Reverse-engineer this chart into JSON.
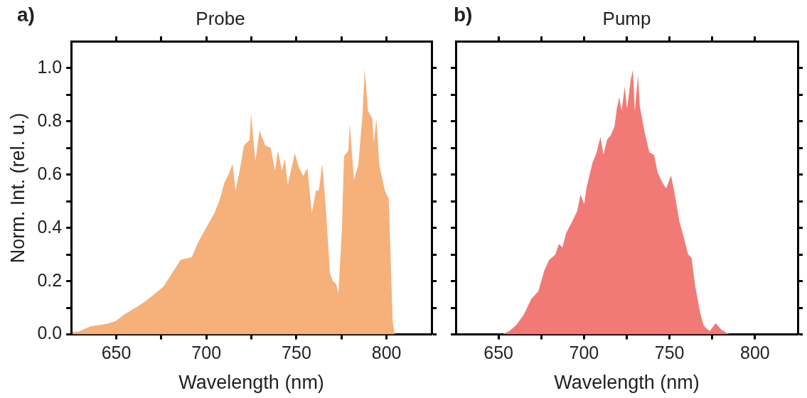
{
  "chart_data": [
    {
      "type": "area",
      "title": "Probe",
      "xlabel": "Wavelength (nm)",
      "ylabel": "Norm. Int. (rel. u.)",
      "annotations": [
        "a)"
      ],
      "color": "#f6b07a",
      "x": [
        625.8,
        628.9,
        635.6,
        645,
        649.7,
        654.4,
        660.6,
        665.3,
        670,
        676.3,
        681,
        685.7,
        691.9,
        695,
        699.8,
        704.5,
        707.6,
        710,
        712.3,
        714.6,
        716.2,
        718.5,
        720.9,
        724,
        724.8,
        727.2,
        729.5,
        732.7,
        735.8,
        738.1,
        739.7,
        742,
        743.6,
        745.1,
        749.1,
        751.4,
        753.8,
        756.1,
        758.5,
        760.8,
        762.4,
        764.4,
        766.3,
        768.6,
        770.2,
        772,
        773.3,
        775.2,
        776.4,
        778.8,
        779.6,
        781.9,
        784.3,
        786.6,
        787.9,
        789.7,
        792.1,
        792.9,
        794.4,
        796,
        799.1,
        801.2,
        802.3,
        803.4,
        804.6
      ],
      "values": [
        0.01,
        0.01,
        0.03,
        0.04,
        0.05,
        0.075,
        0.1,
        0.12,
        0.145,
        0.18,
        0.23,
        0.28,
        0.29,
        0.34,
        0.4,
        0.455,
        0.51,
        0.57,
        0.6,
        0.64,
        0.54,
        0.615,
        0.71,
        0.73,
        0.83,
        0.65,
        0.765,
        0.71,
        0.7,
        0.615,
        0.69,
        0.615,
        0.66,
        0.56,
        0.68,
        0.625,
        0.595,
        0.625,
        0.455,
        0.54,
        0.54,
        0.64,
        0.475,
        0.23,
        0.2,
        0.19,
        0.155,
        0.39,
        0.67,
        0.69,
        0.79,
        0.58,
        0.635,
        0.82,
        0.995,
        0.84,
        0.81,
        0.72,
        0.81,
        0.635,
        0.54,
        0.51,
        0.28,
        0.05,
        0
      ],
      "xlim": [
        625,
        825
      ],
      "xticks": [
        650,
        {
          "value": 675,
          "label": null
        },
        700,
        {
          "value": 725,
          "label": null
        },
        750,
        {
          "value": 775,
          "label": null
        },
        800
      ],
      "ylim": [
        0,
        1.1
      ],
      "yticks": [
        {
          "value": 0.0,
          "label": "0.0"
        },
        {
          "value": 0.1,
          "label": null
        },
        {
          "value": 0.2,
          "label": "0.2"
        },
        {
          "value": 0.3,
          "label": null
        },
        {
          "value": 0.4,
          "label": "0.4"
        },
        {
          "value": 0.5,
          "label": null
        },
        {
          "value": 0.6,
          "label": "0.6"
        },
        {
          "value": 0.7,
          "label": null
        },
        {
          "value": 0.8,
          "label": "0.8"
        },
        {
          "value": 0.9,
          "label": null
        },
        {
          "value": 1.0,
          "label": "1.0"
        }
      ]
    },
    {
      "type": "area",
      "title": "Pump",
      "xlabel": "Wavelength (nm)",
      "annotations": [
        "b)"
      ],
      "color": "#f27a76",
      "tick_labels": "x",
      "x": [
        652.1,
        656.4,
        660.6,
        664.8,
        669.1,
        673.3,
        676.8,
        679.6,
        683.2,
        685.3,
        687.4,
        689.5,
        693,
        695.9,
        698,
        700.1,
        701.5,
        705,
        707.2,
        709.6,
        711.4,
        713.5,
        715.6,
        717.8,
        719.2,
        720.6,
        722,
        723.8,
        725.2,
        727.3,
        728.6,
        729.7,
        731.6,
        732.6,
        735.4,
        738.2,
        741,
        743.1,
        746,
        748.1,
        750.9,
        753,
        755.8,
        758.7,
        760.8,
        762.9,
        765,
        767.8,
        770,
        773.5,
        777,
        780.5,
        784.1,
        787.6
      ],
      "values": [
        0,
        0.013,
        0.037,
        0.075,
        0.133,
        0.162,
        0.24,
        0.28,
        0.3,
        0.34,
        0.327,
        0.38,
        0.423,
        0.462,
        0.525,
        0.49,
        0.552,
        0.645,
        0.68,
        0.742,
        0.675,
        0.732,
        0.747,
        0.78,
        0.848,
        0.89,
        0.838,
        0.93,
        0.848,
        0.955,
        0.993,
        0.838,
        0.974,
        0.858,
        0.761,
        0.684,
        0.674,
        0.607,
        0.568,
        0.549,
        0.597,
        0.529,
        0.423,
        0.356,
        0.302,
        0.288,
        0.182,
        0.085,
        0.032,
        0.013,
        0.042,
        0.017,
        0.003,
        0
      ],
      "xlim": [
        625,
        825
      ],
      "xticks": [
        650,
        {
          "value": 675,
          "label": null
        },
        700,
        {
          "value": 725,
          "label": null
        },
        750,
        {
          "value": 775,
          "label": null
        },
        800
      ],
      "ylim": [
        0,
        1.1
      ],
      "yticks": [
        {
          "value": 0.0,
          "label": null
        },
        {
          "value": 0.1,
          "label": null
        },
        {
          "value": 0.2,
          "label": null
        },
        {
          "value": 0.3,
          "label": null
        },
        {
          "value": 0.4,
          "label": null
        },
        {
          "value": 0.5,
          "label": null
        },
        {
          "value": 0.6,
          "label": null
        },
        {
          "value": 0.7,
          "label": null
        },
        {
          "value": 0.8,
          "label": null
        },
        {
          "value": 0.9,
          "label": null
        },
        {
          "value": 1.0,
          "label": null
        }
      ]
    }
  ]
}
